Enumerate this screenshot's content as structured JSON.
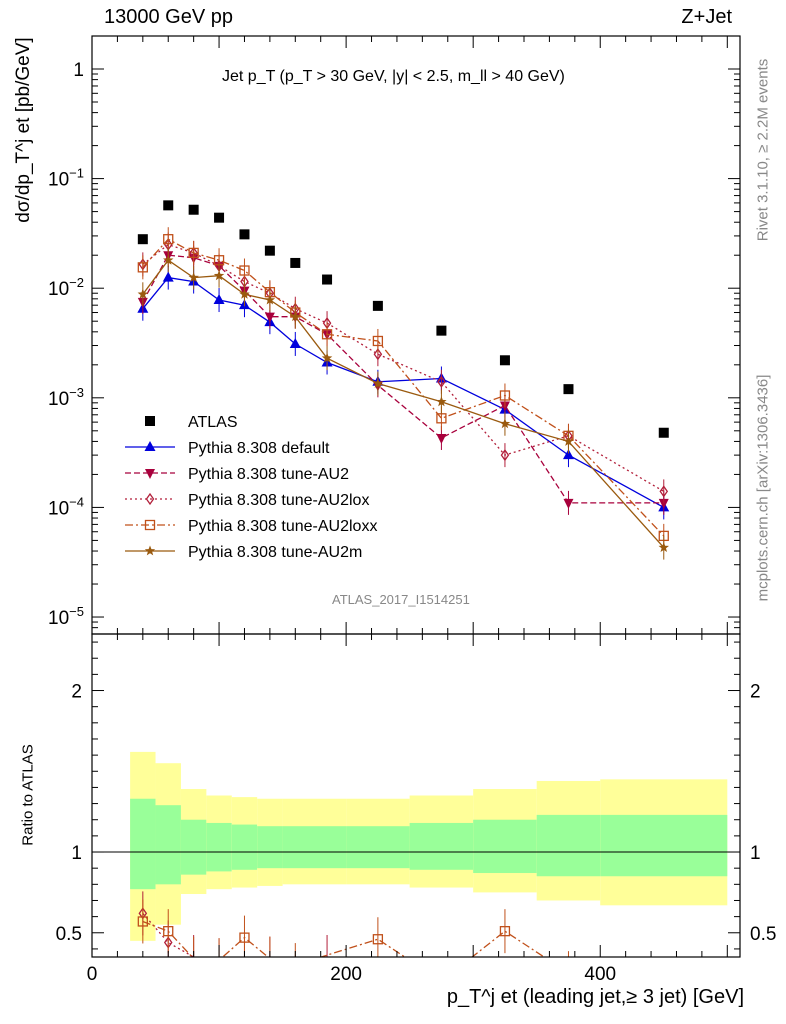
{
  "header": {
    "energy_label": "13000 GeV pp",
    "process_label": "Z+Jet"
  },
  "side_labels": {
    "rivet": "Rivet 3.1.10, ≥ 2.2M events",
    "mcplots": "mcplots.cern.ch [arXiv:1306.3436]"
  },
  "watermark": "ATLAS_2017_I1514251",
  "chart_data": [
    {
      "type": "line",
      "title": "Jet p_T (p_T > 30 GeV, |y| < 2.5, m_ll > 40 GeV)",
      "ylabel": "dσ/dp_T^j et [pb/GeV]",
      "yscale": "log",
      "xlim": [
        0,
        510
      ],
      "ylim": [
        7e-06,
        2
      ],
      "y_tick_labels": [
        "10^-5",
        "10^-4",
        "10^-3",
        "10^-2",
        "10^-1",
        "1"
      ],
      "legend_placement": "bottom-left",
      "x": [
        40,
        60,
        80,
        100,
        120,
        140,
        160,
        185,
        225,
        275,
        325,
        375,
        450
      ],
      "series": [
        {
          "name": "ATLAS",
          "color": "#000000",
          "marker": "square",
          "values": [
            0.028,
            0.057,
            0.052,
            0.044,
            0.031,
            0.022,
            0.017,
            0.012,
            0.0069,
            0.0041,
            0.0022,
            0.0012,
            0.00048
          ]
        },
        {
          "name": "Pythia 8.308 default",
          "color": "#0000dd",
          "marker": "triangle-up",
          "dash": "",
          "values": [
            0.0065,
            0.0125,
            0.0115,
            0.0078,
            0.007,
            0.0049,
            0.0031,
            0.0021,
            0.0014,
            0.0015,
            0.00078,
            0.0003,
            0.0001
          ]
        },
        {
          "name": "Pythia 8.308 tune-AU2",
          "color": "#a8003c",
          "marker": "triangle-down",
          "dash": "6,3",
          "values": [
            0.0075,
            0.02,
            0.019,
            0.016,
            0.0095,
            0.0055,
            0.0055,
            0.0038,
            0.0013,
            0.00043,
            0.00085,
            0.00011,
            0.00011
          ]
        },
        {
          "name": "Pythia 8.308 tune-AU2lox",
          "color": "#b21f3a",
          "marker": "diamond-open",
          "dash": "2,3",
          "values": [
            0.0165,
            0.025,
            0.021,
            0.016,
            0.0115,
            0.009,
            0.0065,
            0.0048,
            0.0025,
            0.0014,
            0.0003,
            0.00045,
            0.00014
          ]
        },
        {
          "name": "Pythia 8.308 tune-AU2loxx",
          "color": "#c0501a",
          "marker": "square-open",
          "dash": "8,3,2,3",
          "values": [
            0.0155,
            0.028,
            0.021,
            0.018,
            0.0145,
            0.0092,
            0.006,
            0.0038,
            0.0033,
            0.00065,
            0.00105,
            0.00045,
            5.5e-05
          ]
        },
        {
          "name": "Pythia 8.308 tune-AU2m",
          "color": "#9a5a0f",
          "marker": "star",
          "dash": "",
          "values": [
            0.0088,
            0.018,
            0.0125,
            0.013,
            0.0088,
            0.0078,
            0.0055,
            0.0023,
            0.00135,
            0.00092,
            0.00058,
            0.0004,
            4.3e-05
          ]
        }
      ]
    },
    {
      "type": "line",
      "ylabel": "Ratio to ATLAS",
      "xlabel": "p_T^j et (leading jet,≥ 3 jet) [GeV]",
      "xlim": [
        0,
        510
      ],
      "ylim": [
        0.35,
        2.35
      ],
      "x_tick_labels": [
        "0",
        "200",
        "400"
      ],
      "y_tick_labels": [
        "0.5",
        "1",
        "2"
      ],
      "bands": {
        "edges": [
          30,
          50,
          70,
          90,
          110,
          130,
          150,
          170,
          200,
          250,
          300,
          350,
          400,
          500
        ],
        "stat_low": [
          0.77,
          0.8,
          0.86,
          0.88,
          0.89,
          0.9,
          0.9,
          0.9,
          0.9,
          0.89,
          0.87,
          0.85,
          0.85
        ],
        "stat_high": [
          1.33,
          1.29,
          1.2,
          1.18,
          1.17,
          1.16,
          1.16,
          1.16,
          1.16,
          1.18,
          1.2,
          1.23,
          1.23
        ],
        "syst_low": [
          0.45,
          0.55,
          0.74,
          0.77,
          0.78,
          0.79,
          0.8,
          0.8,
          0.8,
          0.78,
          0.75,
          0.7,
          0.67
        ],
        "syst_high": [
          1.62,
          1.55,
          1.39,
          1.35,
          1.34,
          1.33,
          1.33,
          1.33,
          1.33,
          1.35,
          1.39,
          1.44,
          1.45
        ]
      },
      "series": [
        {
          "name": "Pythia 8.308 tune-AU2lox",
          "color": "#b21f3a",
          "marker": "diamond-open",
          "dash": "2,3",
          "x": [
            40,
            60,
            80,
            100,
            120,
            140,
            185
          ],
          "values": [
            0.62,
            0.44,
            0.35,
            0.33,
            0.34,
            0.34,
            0.35
          ]
        },
        {
          "name": "Pythia 8.308 tune-AU2loxx",
          "color": "#c0501a",
          "marker": "square-open",
          "dash": "8,3,2,3",
          "x": [
            40,
            60,
            80,
            100,
            120,
            140,
            160,
            225,
            275,
            325,
            375
          ],
          "values": [
            0.57,
            0.51,
            0.34,
            0.33,
            0.47,
            0.34,
            0.3,
            0.46,
            0.2,
            0.51,
            0.25
          ]
        }
      ]
    }
  ]
}
